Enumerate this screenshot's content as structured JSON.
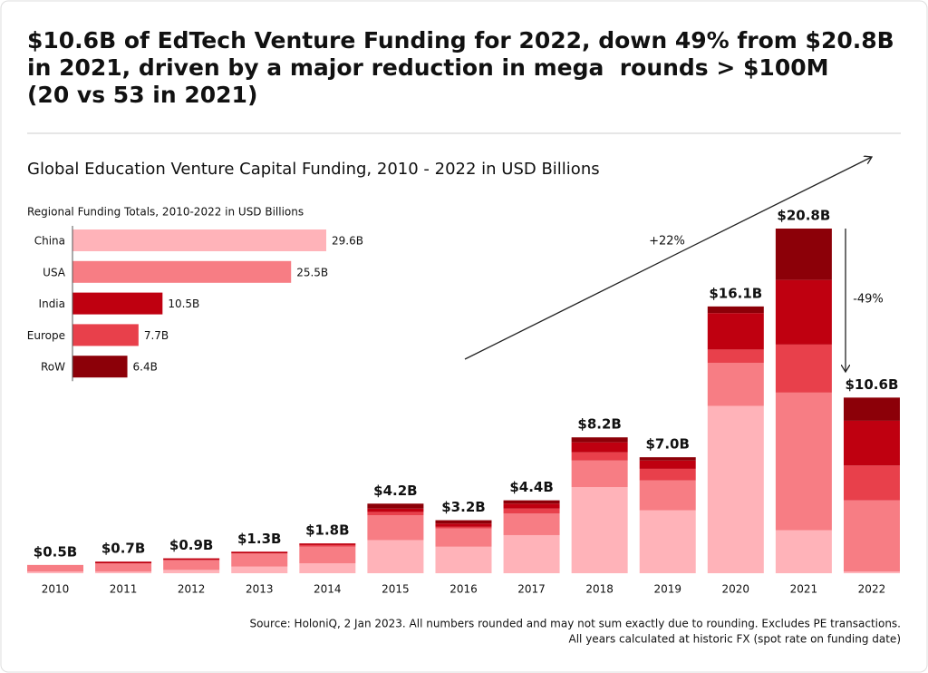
{
  "header": {
    "title": [
      "$10.6B of EdTech Venture Funding for 2022, down 49% from $20.8B",
      "in 2021, driven by a major reduction in mega  rounds > $100M",
      "(20 vs 53 in 2021)"
    ]
  },
  "chart_data": [
    {
      "type": "bar",
      "stacked": true,
      "title": "Global Education Venture Capital Funding, 2010 - 2022 in USD Billions",
      "categories": [
        "2010",
        "2011",
        "2012",
        "2013",
        "2014",
        "2015",
        "2016",
        "2017",
        "2018",
        "2019",
        "2020",
        "2021",
        "2022"
      ],
      "series": [
        {
          "name": "China",
          "color": "#ffb3b9",
          "values": [
            0.1,
            0.1,
            0.2,
            0.4,
            0.6,
            2.0,
            1.6,
            2.3,
            5.2,
            3.8,
            10.1,
            2.6,
            0.1
          ]
        },
        {
          "name": "USA",
          "color": "#f77d84",
          "values": [
            0.4,
            0.5,
            0.6,
            0.8,
            1.0,
            1.5,
            1.1,
            1.3,
            1.6,
            1.8,
            2.6,
            8.3,
            4.3
          ]
        },
        {
          "name": "Europe",
          "color": "#e8404b",
          "values": [
            0.0,
            0.0,
            0.0,
            0.0,
            0.1,
            0.2,
            0.1,
            0.3,
            0.5,
            0.7,
            0.8,
            2.9,
            2.1
          ]
        },
        {
          "name": "India",
          "color": "#bf0010",
          "values": [
            0.0,
            0.1,
            0.1,
            0.1,
            0.1,
            0.2,
            0.2,
            0.3,
            0.6,
            0.5,
            2.2,
            3.9,
            2.7
          ]
        },
        {
          "name": "RoW",
          "color": "#8c0008",
          "values": [
            0.0,
            0.0,
            0.0,
            0.0,
            0.0,
            0.3,
            0.2,
            0.2,
            0.3,
            0.2,
            0.4,
            3.1,
            1.4
          ]
        }
      ],
      "totals": {
        "values": [
          0.5,
          0.7,
          0.9,
          1.3,
          1.8,
          4.2,
          3.2,
          4.4,
          8.2,
          7.0,
          16.1,
          20.8,
          10.6
        ],
        "value_labels": [
          "$0.5B",
          "$0.7B",
          "$0.9B",
          "$1.3B",
          "$1.8B",
          "$4.2B",
          "$3.2B",
          "$4.4B",
          "$8.2B",
          "$7.0B",
          "$16.1B",
          "$20.8B",
          "$10.6B"
        ]
      },
      "annotations": [
        "+22%",
        "-49%"
      ]
    },
    {
      "type": "bar",
      "orientation": "horizontal",
      "title": "Regional Funding Totals, 2010-2022 in USD Billions",
      "categories": [
        "China",
        "USA",
        "India",
        "Europe",
        "RoW"
      ],
      "values": [
        29.6,
        25.5,
        10.5,
        7.7,
        6.4
      ],
      "value_labels": [
        "29.6B",
        "25.5B",
        "10.5B",
        "7.7B",
        "6.4B"
      ],
      "colors": [
        "#ffb3b9",
        "#f77d84",
        "#bf0010",
        "#e8404b",
        "#8c0008"
      ]
    }
  ],
  "footer": {
    "source": [
      "Source: HoloniQ, 2 Jan 2023. All numbers rounded and may not sum exactly due to rounding. Excludes PE transactions.",
      "All years calculated at historic FX (spot rate on funding date)"
    ]
  }
}
